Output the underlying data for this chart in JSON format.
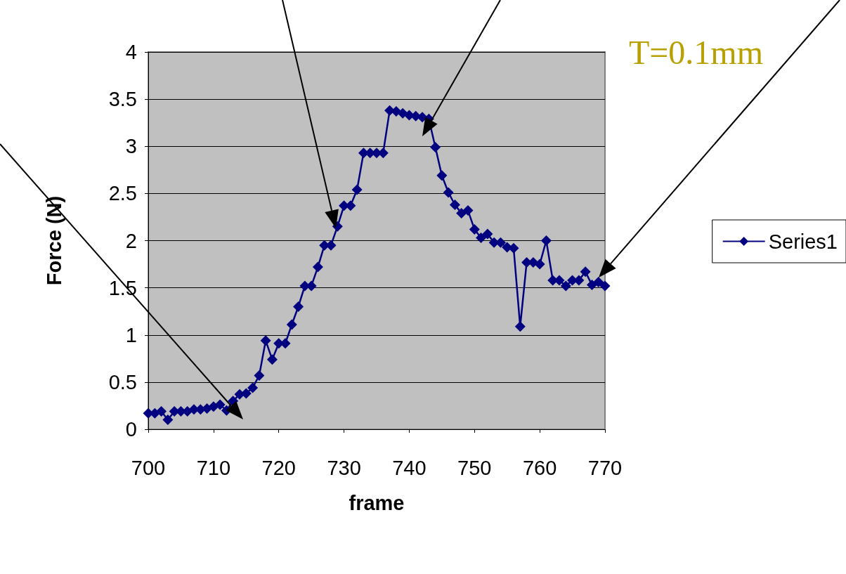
{
  "chart_data": {
    "type": "line",
    "xlabel": "frame",
    "ylabel": "Force (N)",
    "annotations": [
      "T=0.1mm"
    ],
    "x": [
      700,
      701,
      702,
      703,
      704,
      705,
      706,
      707,
      708,
      709,
      710,
      711,
      712,
      713,
      714,
      715,
      716,
      717,
      718,
      719,
      720,
      721,
      722,
      723,
      724,
      725,
      726,
      727,
      728,
      729,
      730,
      731,
      732,
      733,
      734,
      735,
      736,
      737,
      738,
      739,
      740,
      741,
      742,
      743,
      744,
      745,
      746,
      747,
      748,
      749,
      750,
      751,
      752,
      753,
      754,
      755,
      756,
      757,
      758,
      759,
      760,
      761,
      762,
      763,
      764,
      765,
      766,
      767,
      768,
      769,
      770
    ],
    "series": [
      {
        "name": "Series1",
        "color": "#000080",
        "values": [
          0.17,
          0.17,
          0.19,
          0.1,
          0.19,
          0.19,
          0.19,
          0.21,
          0.21,
          0.22,
          0.24,
          0.26,
          0.2,
          0.3,
          0.37,
          0.38,
          0.44,
          0.57,
          0.94,
          0.74,
          0.91,
          0.91,
          1.11,
          1.3,
          1.52,
          1.52,
          1.72,
          1.95,
          1.95,
          2.15,
          2.37,
          2.37,
          2.54,
          2.93,
          2.93,
          2.93,
          2.93,
          3.38,
          3.37,
          3.35,
          3.33,
          3.32,
          3.31,
          3.29,
          2.99,
          2.69,
          2.51,
          2.38,
          2.29,
          2.32,
          2.12,
          2.03,
          2.07,
          1.98,
          1.98,
          1.93,
          1.92,
          1.09,
          1.77,
          1.77,
          1.75,
          2.0,
          1.58,
          1.58,
          1.52,
          1.58,
          1.58,
          1.67,
          1.53,
          1.56,
          1.52
        ]
      }
    ],
    "xlim": [
      700,
      770
    ],
    "xticks": [
      700,
      710,
      720,
      730,
      740,
      750,
      760,
      770
    ],
    "ylim": [
      0,
      4
    ],
    "yticks": [
      0,
      0.5,
      1,
      1.5,
      2,
      2.5,
      3,
      3.5,
      4
    ],
    "grid": "y",
    "legend": "right",
    "marker": "diamond",
    "line_style": "solid"
  }
}
